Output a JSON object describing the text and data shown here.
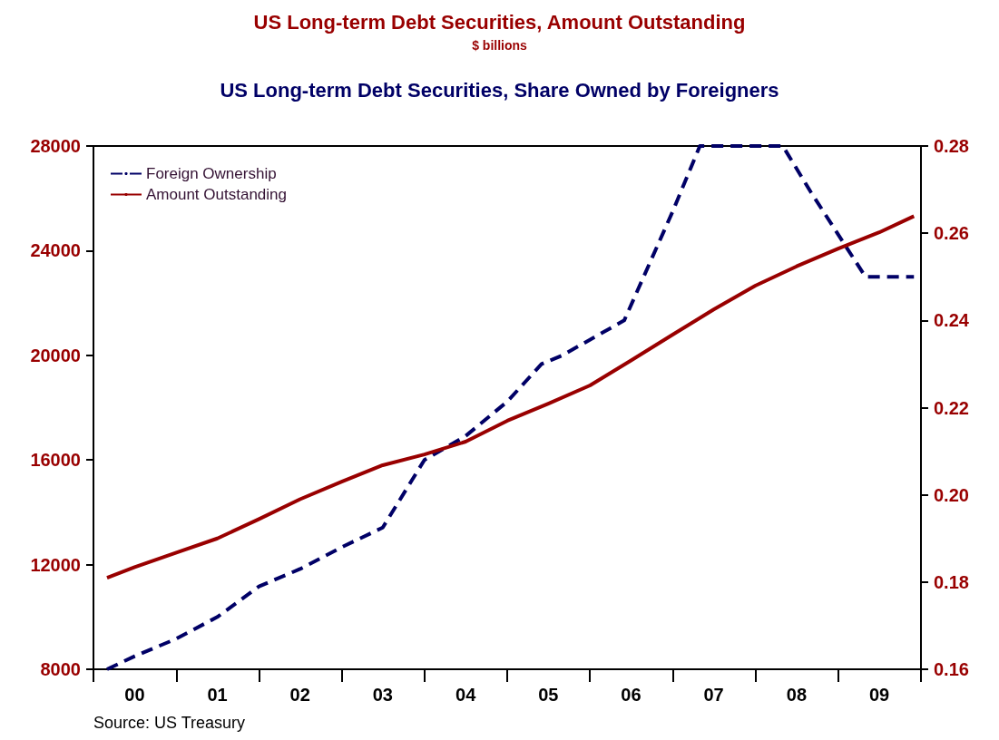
{
  "chart_data": {
    "type": "line",
    "title": "US Long-term Debt Securities, Amount Outstanding",
    "subtitle": "$ billions",
    "annotations": [
      "US Long-term Debt Securities, Share Owned by Foreigners",
      "Source: US Treasury"
    ],
    "xlim": [
      "2000-01",
      "2010-01"
    ],
    "xticks": [
      {
        "value": "2000-01",
        "label": null
      },
      {
        "value": "2000-07",
        "label": "00"
      },
      {
        "value": "2001-01",
        "label": null
      },
      {
        "value": "2001-07",
        "label": "01"
      },
      {
        "value": "2002-01",
        "label": null
      },
      {
        "value": "2002-07",
        "label": "02"
      },
      {
        "value": "2003-01",
        "label": null
      },
      {
        "value": "2003-07",
        "label": "03"
      },
      {
        "value": "2004-01",
        "label": null
      },
      {
        "value": "2004-07",
        "label": "04"
      },
      {
        "value": "2005-01",
        "label": null
      },
      {
        "value": "2005-07",
        "label": "05"
      },
      {
        "value": "2006-01",
        "label": null
      },
      {
        "value": "2006-07",
        "label": "06"
      },
      {
        "value": "2007-01",
        "label": null
      },
      {
        "value": "2007-07",
        "label": "07"
      },
      {
        "value": "2008-01",
        "label": null
      },
      {
        "value": "2008-07",
        "label": "08"
      },
      {
        "value": "2009-01",
        "label": null
      },
      {
        "value": "2009-07",
        "label": "09"
      },
      {
        "value": "2010-01",
        "label": null
      }
    ],
    "ylim": [
      8000,
      28000
    ],
    "yticks": [
      8000,
      12000,
      16000,
      20000,
      24000,
      28000
    ],
    "y2lim": [
      0.16,
      0.28
    ],
    "y2ticks": [
      {
        "value": 0.16,
        "label": "0.16"
      },
      {
        "value": 0.18,
        "label": "0.18"
      },
      {
        "value": 0.2,
        "label": "0.20"
      },
      {
        "value": 0.22,
        "label": "0.22"
      },
      {
        "value": 0.24,
        "label": "0.24"
      },
      {
        "value": 0.26,
        "label": "0.26"
      },
      {
        "value": 0.28,
        "label": "0.28"
      }
    ],
    "grid": false,
    "legend": "top left",
    "marker": "none",
    "series": [
      {
        "name": "Foreign Ownership",
        "color": "#000066",
        "axis": "y2",
        "line_style": "dashed",
        "x": [
          "2000-03",
          "2000-07",
          "2001-01",
          "2001-07",
          "2002-01",
          "2002-07",
          "2003-01",
          "2003-07",
          "2004-01",
          "2004-07",
          "2005-01",
          "2005-06",
          "2005-09",
          "2006-06",
          "2007-01",
          "2007-05",
          "2008-05",
          "2008-09",
          "2009-05",
          "2009-12"
        ],
        "values": [
          0.16,
          0.163,
          0.167,
          0.172,
          0.179,
          0.183,
          0.188,
          0.1925,
          0.208,
          0.2135,
          0.2214,
          0.23,
          0.232,
          0.24,
          0.265,
          0.28,
          0.28,
          0.2695,
          0.25,
          0.25
        ]
      },
      {
        "name": "Amount Outstanding",
        "color": "#990000",
        "line_style": "solid",
        "x": [
          "2000-03",
          "2000-07",
          "2001-01",
          "2001-07",
          "2002-01",
          "2002-07",
          "2003-01",
          "2003-07",
          "2004-01",
          "2004-07",
          "2005-01",
          "2005-07",
          "2006-01",
          "2006-07",
          "2007-01",
          "2007-07",
          "2008-01",
          "2008-07",
          "2009-01",
          "2009-07",
          "2009-12"
        ],
        "values": [
          11500,
          11900,
          12460,
          13000,
          13740,
          14500,
          15170,
          15800,
          16210,
          16700,
          17500,
          18150,
          18850,
          19800,
          20790,
          21750,
          22660,
          23400,
          24080,
          24700,
          25320
        ]
      }
    ]
  }
}
